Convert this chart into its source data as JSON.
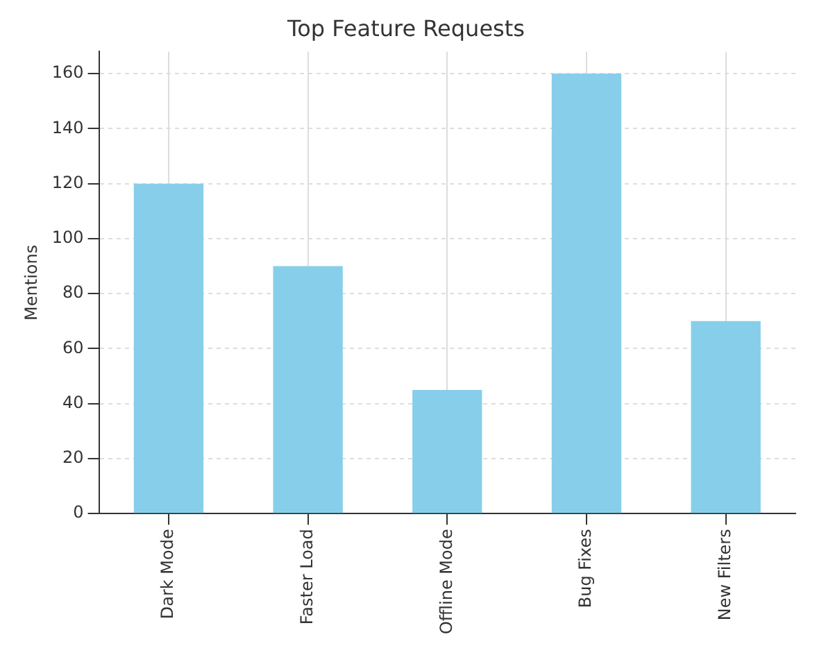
{
  "chart_data": {
    "type": "bar",
    "title": "Top Feature Requests",
    "ylabel": "Mentions",
    "categories": [
      "Dark Mode",
      "Faster Load",
      "Offline Mode",
      "Bug Fixes",
      "New Filters"
    ],
    "values": [
      120,
      90,
      45,
      160,
      70
    ],
    "color": "#87ceeb",
    "ylim": [
      0,
      168
    ],
    "yticks": [
      0,
      20,
      40,
      60,
      80,
      100,
      120,
      140,
      160
    ],
    "grid": true
  }
}
